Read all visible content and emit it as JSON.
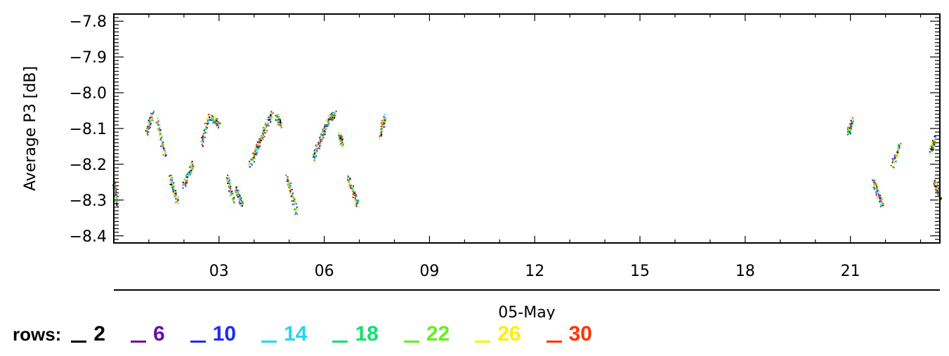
{
  "chart_data": {
    "type": "scatter",
    "ylabel": "Average P3 [dB]",
    "xlabel": "05-May",
    "ylim": [
      -8.42,
      -7.78
    ],
    "xlim": [
      0.0,
      23.55
    ],
    "yticks": [
      {
        "value": -7.8,
        "label": "−7.8"
      },
      {
        "value": -7.9,
        "label": "−7.9"
      },
      {
        "value": -8.0,
        "label": "−8.0"
      },
      {
        "value": -8.1,
        "label": "−8.1"
      },
      {
        "value": -8.2,
        "label": "−8.2"
      },
      {
        "value": -8.3,
        "label": "−8.3"
      },
      {
        "value": -8.4,
        "label": "−8.4"
      }
    ],
    "xticks": [
      {
        "value": 3,
        "label": "03"
      },
      {
        "value": 6,
        "label": "06"
      },
      {
        "value": 9,
        "label": "09"
      },
      {
        "value": 12,
        "label": "12"
      },
      {
        "value": 15,
        "label": "15"
      },
      {
        "value": 18,
        "label": "18"
      },
      {
        "value": 21,
        "label": "21"
      }
    ],
    "legend": {
      "title": "rows:",
      "placement": "bottom",
      "entries": [
        {
          "label": "2",
          "color": "#000000"
        },
        {
          "label": "6",
          "color": "#6a0dad"
        },
        {
          "label": "10",
          "color": "#1a2bff"
        },
        {
          "label": "14",
          "color": "#22d7f0"
        },
        {
          "label": "18",
          "color": "#10e070"
        },
        {
          "label": "22",
          "color": "#66ee22"
        },
        {
          "label": "26",
          "color": "#ffee00"
        },
        {
          "label": "30",
          "color": "#ff3300"
        }
      ]
    },
    "segments": [
      {
        "x": [
          0.0,
          0.1
        ],
        "y": [
          -8.25,
          -8.31
        ]
      },
      {
        "x": [
          0.95,
          1.1
        ],
        "y": [
          -8.11,
          -8.06
        ]
      },
      {
        "x": [
          1.25,
          1.45
        ],
        "y": [
          -8.08,
          -8.17
        ]
      },
      {
        "x": [
          1.62,
          1.8
        ],
        "y": [
          -8.24,
          -8.3
        ]
      },
      {
        "x": [
          2.0,
          2.25
        ],
        "y": [
          -8.26,
          -8.2
        ]
      },
      {
        "x": [
          2.5,
          2.7
        ],
        "y": [
          -8.14,
          -8.07
        ]
      },
      {
        "x": [
          2.8,
          3.0
        ],
        "y": [
          -8.07,
          -8.09
        ]
      },
      {
        "x": [
          3.25,
          3.4
        ],
        "y": [
          -8.24,
          -8.3
        ]
      },
      {
        "x": [
          3.5,
          3.65
        ],
        "y": [
          -8.27,
          -8.31
        ]
      },
      {
        "x": [
          3.9,
          4.5
        ],
        "y": [
          -8.2,
          -8.06
        ]
      },
      {
        "x": [
          4.65,
          4.75
        ],
        "y": [
          -8.07,
          -8.09
        ]
      },
      {
        "x": [
          4.95,
          5.2
        ],
        "y": [
          -8.24,
          -8.33
        ]
      },
      {
        "x": [
          5.7,
          6.15
        ],
        "y": [
          -8.18,
          -8.07
        ]
      },
      {
        "x": [
          6.2,
          6.3
        ],
        "y": [
          -8.07,
          -8.06
        ]
      },
      {
        "x": [
          6.45,
          6.5
        ],
        "y": [
          -8.12,
          -8.14
        ]
      },
      {
        "x": [
          6.7,
          6.95
        ],
        "y": [
          -8.24,
          -8.31
        ]
      },
      {
        "x": [
          7.6,
          7.72
        ],
        "y": [
          -8.12,
          -8.07
        ]
      },
      {
        "x": [
          20.95,
          21.05
        ],
        "y": [
          -8.11,
          -8.08
        ]
      },
      {
        "x": [
          21.65,
          21.9
        ],
        "y": [
          -8.25,
          -8.31
        ]
      },
      {
        "x": [
          22.2,
          22.4
        ],
        "y": [
          -8.2,
          -8.15
        ]
      },
      {
        "x": [
          23.3,
          23.4
        ],
        "y": [
          -8.16,
          -8.13
        ]
      },
      {
        "x": [
          23.4,
          23.55
        ],
        "y": [
          -8.25,
          -8.29
        ]
      }
    ]
  }
}
